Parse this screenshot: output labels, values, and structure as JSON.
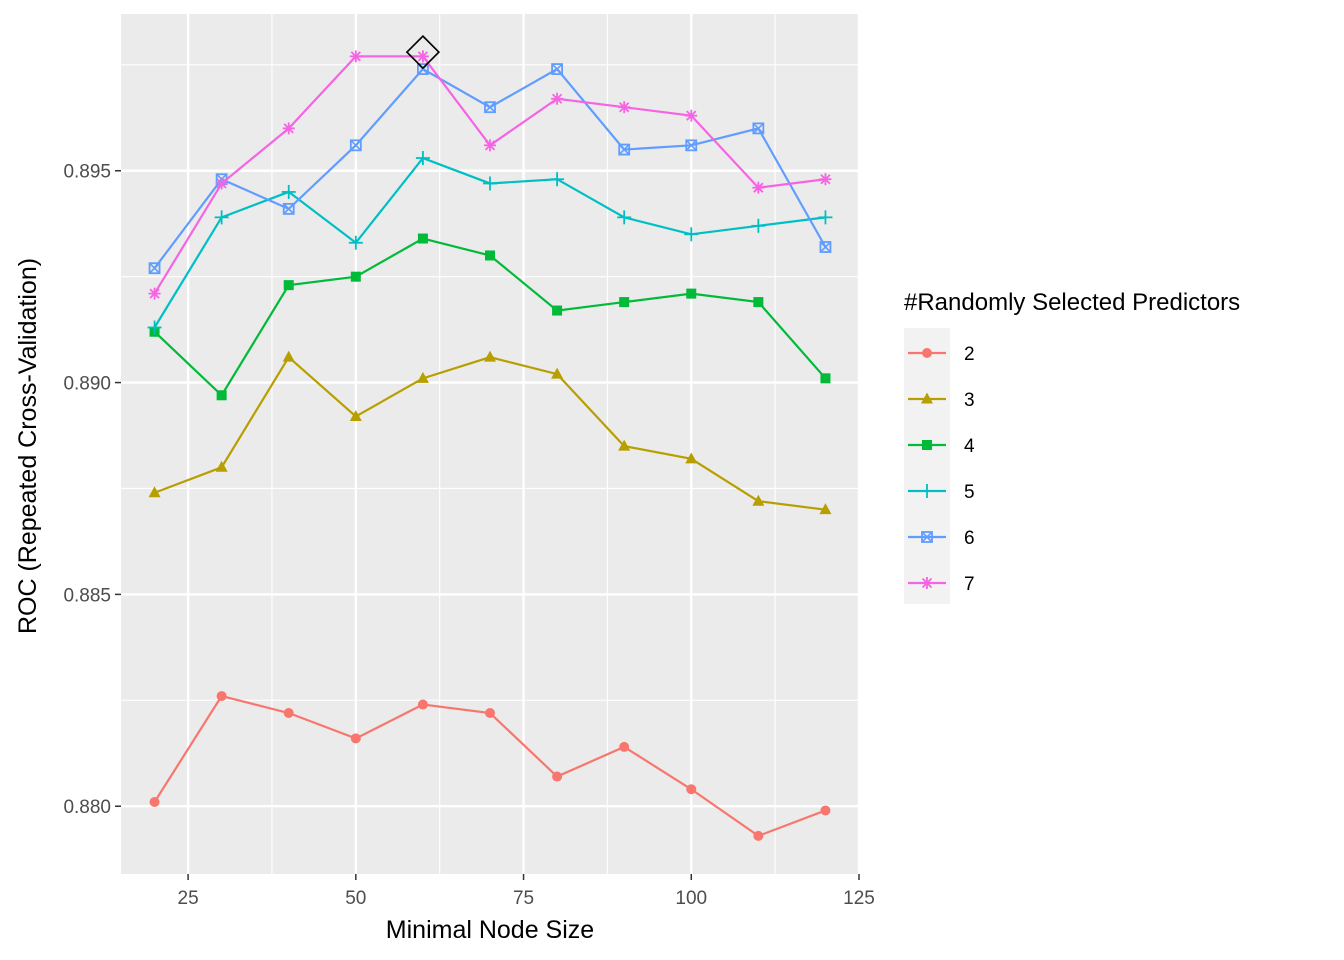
{
  "chart_data": {
    "type": "line",
    "xlabel": "Minimal Node Size",
    "ylabel": "ROC (Repeated Cross-Validation)",
    "xlim": [
      15,
      125
    ],
    "ylim": [
      0.8784,
      0.8987
    ],
    "x_ticks": [
      25,
      50,
      75,
      100,
      125
    ],
    "x_tick_labels": [
      "25",
      "50",
      "75",
      "100",
      "125"
    ],
    "y_ticks": [
      0.88,
      0.885,
      0.89,
      0.895
    ],
    "y_tick_labels": [
      "0.880",
      "0.885",
      "0.890",
      "0.895"
    ],
    "grid": true,
    "legend": {
      "title": "#Randomly Selected Predictors",
      "position": "right"
    },
    "x": [
      20,
      30,
      40,
      50,
      60,
      70,
      80,
      90,
      100,
      110,
      120
    ],
    "series": [
      {
        "name": "2",
        "color": "#F8766D",
        "shape": "circle",
        "values": [
          0.8801,
          0.8826,
          0.8822,
          0.8816,
          0.8824,
          0.8822,
          0.8807,
          0.8814,
          0.8804,
          0.8793,
          0.8799
        ]
      },
      {
        "name": "3",
        "color": "#B79F00",
        "shape": "triangle",
        "values": [
          0.8874,
          0.888,
          0.8906,
          0.8892,
          0.8901,
          0.8906,
          0.8902,
          0.8885,
          0.8882,
          0.8872,
          0.887
        ]
      },
      {
        "name": "4",
        "color": "#00BA38",
        "shape": "square",
        "values": [
          0.8912,
          0.8897,
          0.8923,
          0.8925,
          0.8934,
          0.893,
          0.8917,
          0.8919,
          0.8921,
          0.8919,
          0.8901
        ]
      },
      {
        "name": "5",
        "color": "#00BFC4",
        "shape": "plus",
        "values": [
          0.8913,
          0.8939,
          0.8945,
          0.8933,
          0.8953,
          0.8947,
          0.8948,
          0.8939,
          0.8935,
          0.8937,
          0.8939
        ]
      },
      {
        "name": "6",
        "color": "#619CFF",
        "shape": "boxcross",
        "values": [
          0.8927,
          0.8948,
          0.8941,
          0.8956,
          0.8974,
          0.8965,
          0.8974,
          0.8955,
          0.8956,
          0.896,
          0.8932
        ]
      },
      {
        "name": "7",
        "color": "#F564E3",
        "shape": "asterisk",
        "values": [
          0.8921,
          0.8947,
          0.896,
          0.8977,
          0.8977,
          0.8956,
          0.8967,
          0.8965,
          0.8963,
          0.8946,
          0.8948
        ]
      }
    ],
    "best": {
      "x": 60,
      "y": 0.8978,
      "shape": "diamond",
      "color": "#000000"
    }
  }
}
